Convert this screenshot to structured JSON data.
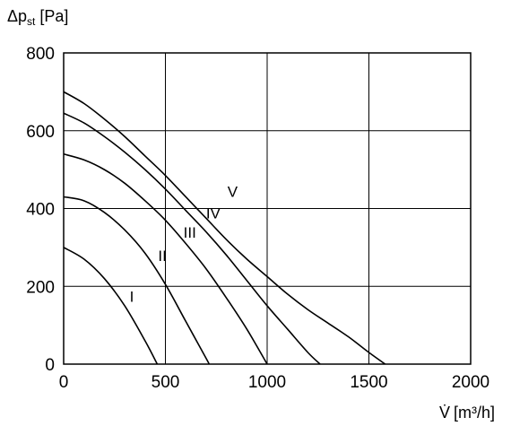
{
  "chart_data": {
    "type": "line",
    "title": "",
    "ylabel": "Δp",
    "ylabel_sub": "st",
    "ylabel_unit": " [Pa]",
    "xlabel": "V̇",
    "xlabel_unit": "[m³/h]",
    "xlim": [
      0,
      2000
    ],
    "ylim": [
      0,
      800
    ],
    "x_ticks": [
      0,
      500,
      1000,
      1500,
      2000
    ],
    "y_ticks": [
      0,
      200,
      400,
      600,
      800
    ],
    "grid": true,
    "series": [
      {
        "name": "I",
        "x": [
          0,
          100,
          200,
          300,
          400,
          460
        ],
        "y": [
          300,
          270,
          220,
          150,
          60,
          0
        ]
      },
      {
        "name": "II",
        "x": [
          0,
          100,
          200,
          300,
          400,
          500,
          600,
          700,
          715
        ],
        "y": [
          430,
          420,
          390,
          345,
          285,
          205,
          110,
          15,
          0
        ]
      },
      {
        "name": "III",
        "x": [
          0,
          100,
          200,
          300,
          400,
          500,
          600,
          700,
          800,
          900,
          1000
        ],
        "y": [
          540,
          525,
          500,
          465,
          420,
          370,
          310,
          245,
          170,
          90,
          0
        ]
      },
      {
        "name": "IV",
        "x": [
          0,
          100,
          200,
          300,
          400,
          500,
          600,
          700,
          800,
          900,
          1000,
          1100,
          1200,
          1260
        ],
        "y": [
          645,
          620,
          585,
          545,
          500,
          450,
          395,
          340,
          280,
          215,
          150,
          90,
          30,
          0
        ]
      },
      {
        "name": "V",
        "x": [
          0,
          100,
          200,
          300,
          400,
          500,
          600,
          700,
          800,
          900,
          1000,
          1100,
          1200,
          1300,
          1400,
          1500,
          1580
        ],
        "y": [
          700,
          670,
          630,
          585,
          535,
          485,
          430,
          375,
          320,
          270,
          225,
          180,
          140,
          105,
          70,
          30,
          0
        ]
      }
    ],
    "series_label_positions": [
      {
        "name": "I",
        "x": 335,
        "y": 160
      },
      {
        "name": "II",
        "x": 485,
        "y": 265
      },
      {
        "name": "III",
        "x": 620,
        "y": 325
      },
      {
        "name": "IV",
        "x": 735,
        "y": 375
      },
      {
        "name": "V",
        "x": 830,
        "y": 430
      }
    ]
  }
}
